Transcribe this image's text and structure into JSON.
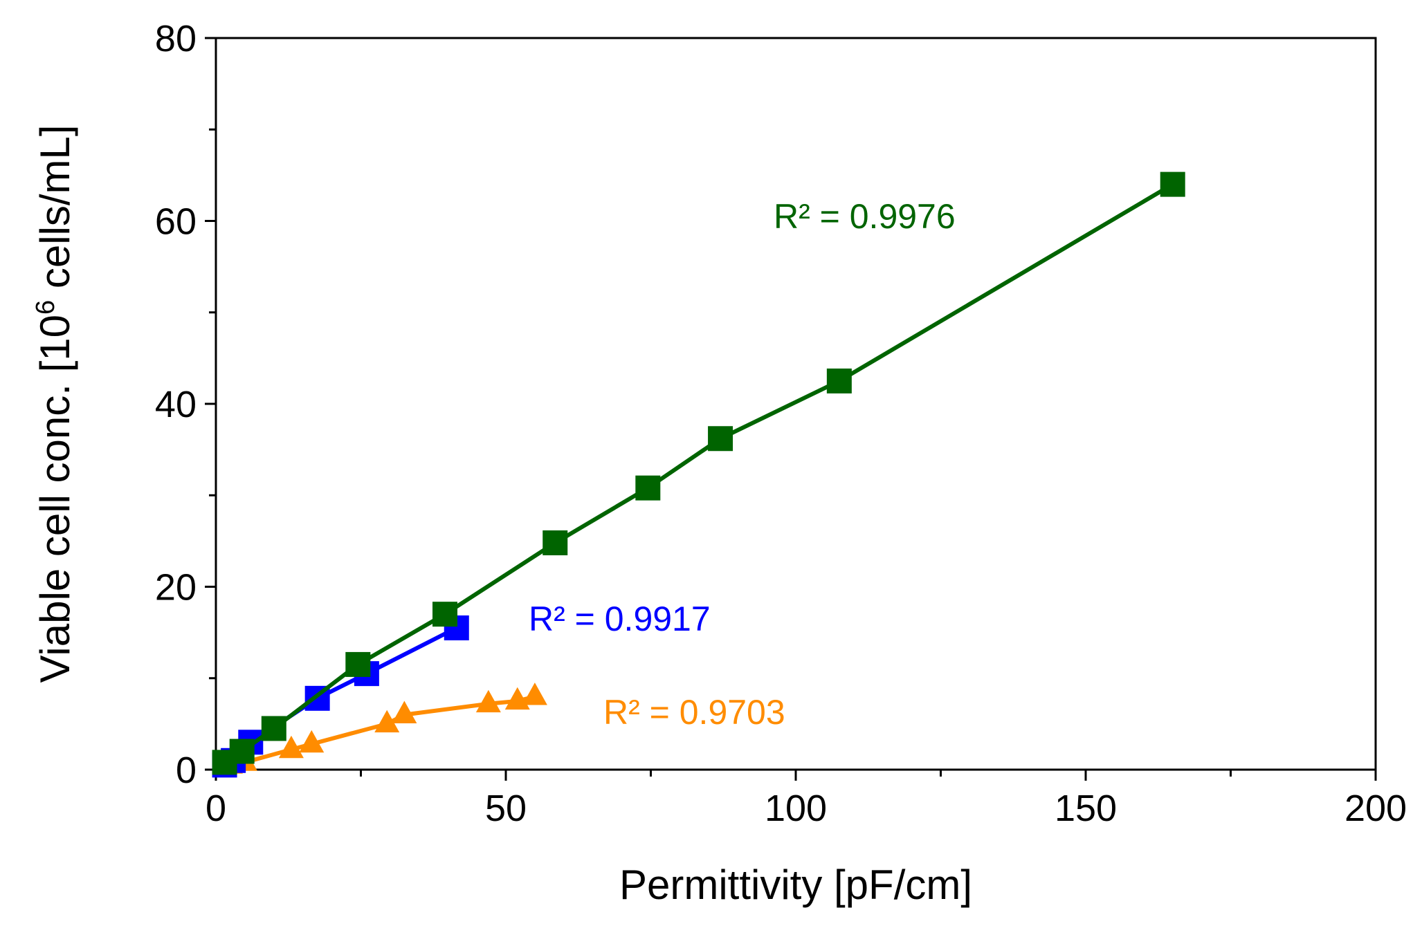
{
  "chart_data": {
    "type": "scatter",
    "title": "",
    "xlabel": "Permittivity [pF/cm]",
    "ylabel": {
      "prefix": "Viable cell conc.  [10",
      "sup": "6",
      "suffix": " cells/mL]"
    },
    "xlim": [
      0,
      200
    ],
    "ylim": [
      0,
      80
    ],
    "x_ticks": [
      0,
      50,
      100,
      150,
      200
    ],
    "x_tick_labels": [
      "0",
      "50",
      "100",
      "150",
      "200"
    ],
    "x_minor_ticks": [
      25,
      75,
      125,
      175
    ],
    "y_ticks": [
      0,
      20,
      40,
      60,
      80
    ],
    "y_tick_labels": [
      "0",
      "20",
      "40",
      "60",
      "80"
    ],
    "y_minor_ticks": [
      10,
      30,
      50,
      70
    ],
    "grid": false,
    "series": [
      {
        "name": "orange",
        "color": "#ff8c00",
        "marker": "triangle",
        "x": [
          2.5,
          5,
          13,
          16.5,
          29.5,
          32.5,
          47,
          52,
          55
        ],
        "y": [
          0.5,
          0.8,
          2.2,
          2.8,
          5.0,
          6.0,
          7.2,
          7.5,
          8.0
        ],
        "r2_label": "R² = 0.9703"
      },
      {
        "name": "blue",
        "color": "#0000ff",
        "marker": "square",
        "x": [
          1.5,
          3,
          6,
          17.5,
          26,
          41.5
        ],
        "y": [
          0.5,
          1.0,
          3.0,
          7.8,
          10.5,
          15.5
        ],
        "r2_label": "R² = 0.9917"
      },
      {
        "name": "green",
        "color": "#006400",
        "marker": "square",
        "x": [
          1.5,
          4.5,
          10,
          24.5,
          39.5,
          58.5,
          74.5,
          87,
          107.5,
          165
        ],
        "y": [
          0.8,
          2.0,
          4.5,
          11.5,
          17.0,
          24.8,
          30.8,
          36.2,
          42.5,
          64.0
        ],
        "r2_label": "R²  = 0.9976"
      }
    ]
  }
}
